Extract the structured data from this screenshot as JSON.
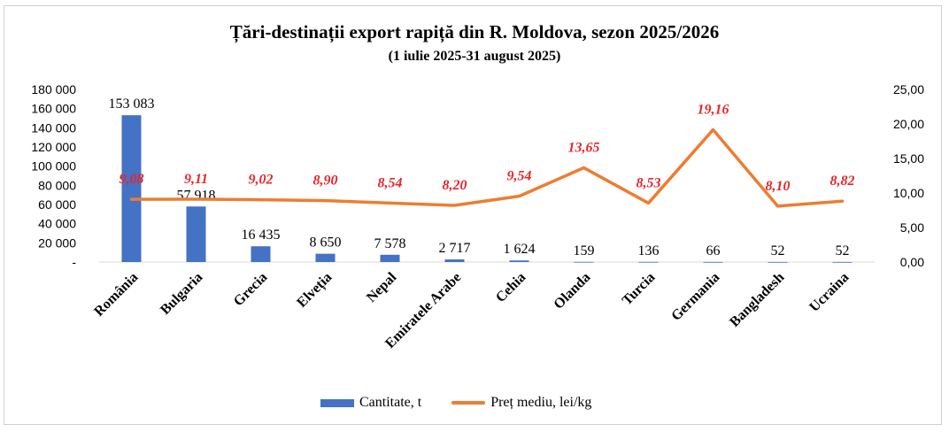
{
  "title": "Țări-destinații export rapiță din R. Moldova, sezon 2025/2026",
  "subtitle": "(1 iulie 2025-31  august 2025)",
  "colors": {
    "bar": "#4472c4",
    "line": "#ed7d31",
    "price_label": "#e8262a"
  },
  "chart_data": {
    "type": "bar",
    "categories": [
      "România",
      "Bulgaria",
      "Grecia",
      "Elveția",
      "Nepal",
      "Emiratele Arabe",
      "Cehia",
      "Olanda",
      "Turcia",
      "Germania",
      "Bangladesh",
      "Ucraina"
    ],
    "series": [
      {
        "name": "Cantitate, t",
        "type": "bar",
        "axis": "left",
        "values": [
          153083,
          57918,
          16435,
          8650,
          7578,
          2717,
          1624,
          159,
          136,
          66,
          52,
          52
        ],
        "labels": [
          "153 083",
          "57 918",
          "16 435",
          "8 650",
          "7 578",
          "2 717",
          "1 624",
          "159",
          "136",
          "66",
          "52",
          "52"
        ]
      },
      {
        "name": "Preț mediu, lei/kg",
        "type": "line",
        "axis": "right",
        "values": [
          9.08,
          9.11,
          9.02,
          8.9,
          8.54,
          8.2,
          9.54,
          13.65,
          8.53,
          19.16,
          8.1,
          8.82
        ],
        "labels": [
          "9,08",
          "9,11",
          "9,02",
          "8,90",
          "8,54",
          "8,20",
          "9,54",
          "13,65",
          "8,53",
          "19,16",
          "8,10",
          "8,82"
        ]
      }
    ],
    "y_left": {
      "range": [
        0,
        180000
      ],
      "ticks": [
        0,
        20000,
        40000,
        60000,
        80000,
        100000,
        120000,
        140000,
        160000,
        180000
      ],
      "tick_labels": [
        "-",
        "20 000",
        "40 000",
        "60 000",
        "80 000",
        "100 000",
        "120 000",
        "140 000",
        "160 000",
        "180 000"
      ]
    },
    "y_right": {
      "range": [
        0,
        25
      ],
      "ticks": [
        0,
        5,
        10,
        15,
        20,
        25
      ],
      "tick_labels": [
        "0,00",
        "5,00",
        "10,00",
        "15,00",
        "20,00",
        "25,00"
      ]
    },
    "grid": false,
    "legend_position": "bottom"
  }
}
